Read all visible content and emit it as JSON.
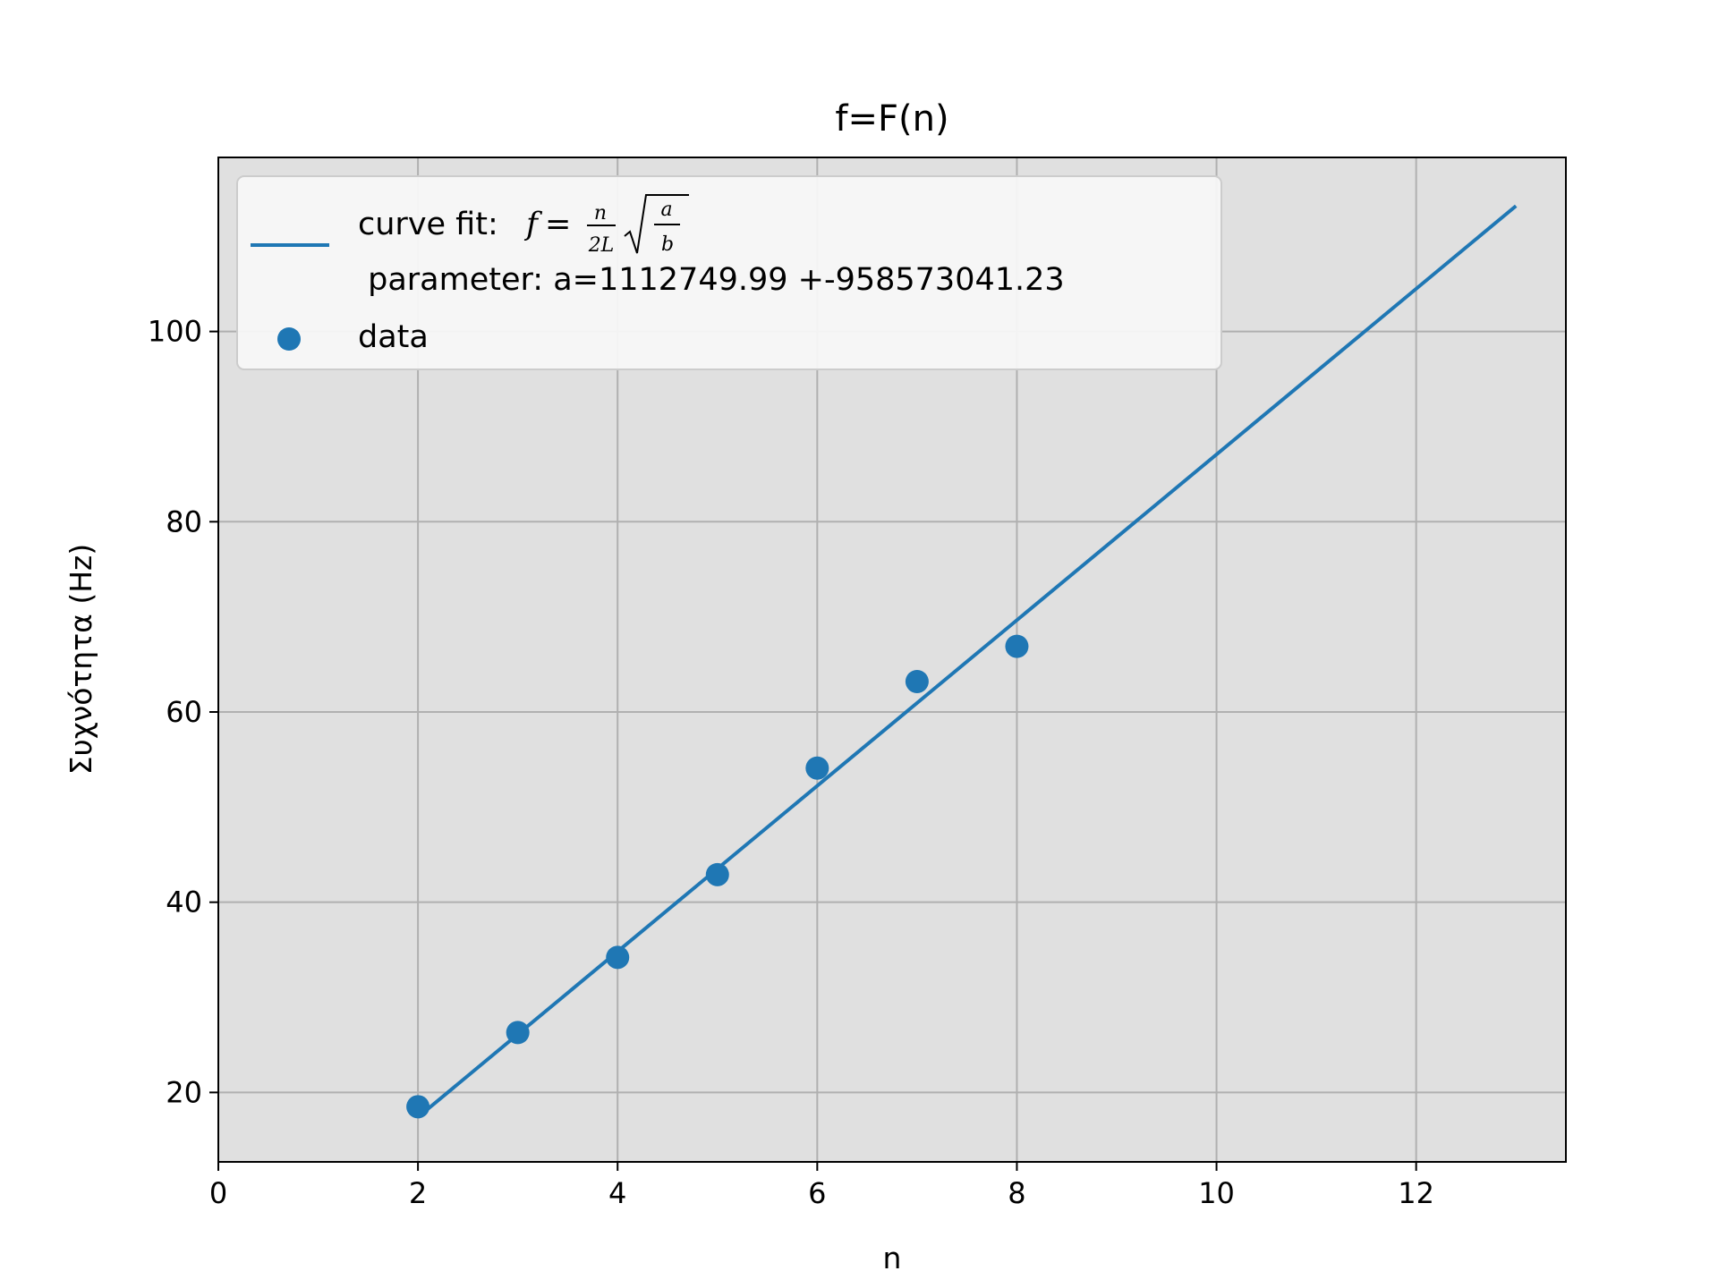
{
  "chart_data": {
    "type": "scatter",
    "title": "f=F(n)",
    "xlabel": "n",
    "ylabel": "Συχνότητα (Hz)",
    "xlim": [
      0,
      13.5
    ],
    "ylim": [
      12.7,
      118.3
    ],
    "xticks": [
      0,
      2,
      4,
      6,
      8,
      10,
      12
    ],
    "yticks": [
      20,
      40,
      60,
      80,
      100
    ],
    "grid": true,
    "legend_position": "top-left",
    "background_color": "#e0e0e0",
    "series": [
      {
        "kind": "line",
        "name": "curve fit:",
        "formula": {
          "lhs": "f",
          "eq": "=",
          "num": "n",
          "den": "2L",
          "sqrt_num": "a",
          "sqrt_den": "b"
        },
        "param_label": " parameter: a=1112749.99 +-958573041.23",
        "color": "#1f77b4",
        "x": [
          2,
          13
        ],
        "y": [
          17.4,
          113.2
        ]
      },
      {
        "kind": "scatter",
        "name": "data",
        "color": "#1f77b4",
        "x": [
          2,
          3,
          4,
          5,
          6,
          7,
          8
        ],
        "y": [
          18.5,
          26.3,
          34.2,
          42.9,
          54.1,
          63.2,
          66.9
        ]
      }
    ]
  }
}
